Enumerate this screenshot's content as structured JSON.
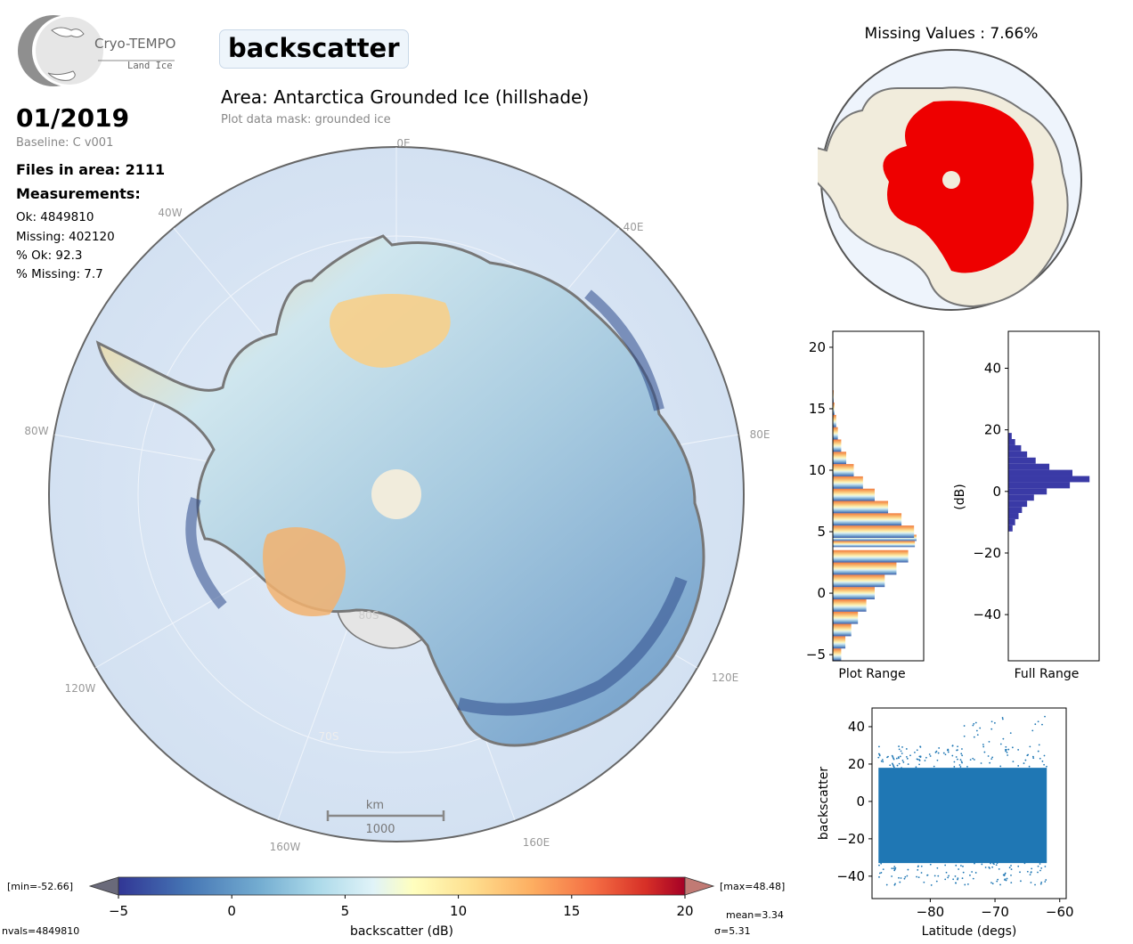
{
  "logo": {
    "name": "Cryo-TEMPO",
    "subtitle": "Land Ice"
  },
  "parameter_title": "backscatter",
  "area_title": "Area: Antarctica Grounded Ice (hillshade)",
  "mask_text": "Plot data mask: grounded ice",
  "date": "01/2019",
  "baseline": "Baseline: C v001",
  "files_in_area": "Files in area: 2111",
  "measurements_heading": "Measurements:",
  "stats": {
    "ok": "Ok: 4849810",
    "missing": "Missing: 402120",
    "pct_ok": "% Ok: 92.3",
    "pct_missing": "% Missing: 7.7"
  },
  "map": {
    "lon_labels": [
      "0E",
      "40E",
      "80E",
      "120E",
      "160E",
      "160W",
      "120W",
      "80W",
      "40W"
    ],
    "lat_labels": [
      "80S",
      "70S"
    ],
    "scalebar_unit": "km",
    "scalebar_value": "1000"
  },
  "missing_map_title": "Missing Values : 7.66%",
  "colorbar": {
    "label": "backscatter (dB)",
    "min_label": "[min=-52.66]",
    "max_label": "[max=48.48]",
    "nvals": "nvals=4849810",
    "mean": "mean=3.34",
    "sigma": "σ=5.31",
    "ticks": [
      "−5",
      "0",
      "5",
      "10",
      "15",
      "20"
    ]
  },
  "chart_data": [
    {
      "type": "bar",
      "orientation": "horizontal",
      "xlabel": "Plot Range",
      "ylabel": "",
      "ylim": [
        -5.5,
        21.3
      ],
      "yticks": [
        "−5",
        "0",
        "5",
        "10",
        "15",
        "20"
      ],
      "bin_centers": [
        -5,
        -4,
        -3,
        -2,
        -1,
        0,
        1,
        2,
        3,
        4,
        4.5,
        5,
        6,
        7,
        8,
        9,
        10,
        11,
        12,
        13,
        14,
        15,
        16
      ],
      "relative_counts": [
        0.1,
        0.15,
        0.22,
        0.3,
        0.4,
        0.5,
        0.62,
        0.76,
        0.9,
        0.98,
        1.0,
        0.97,
        0.82,
        0.66,
        0.5,
        0.36,
        0.25,
        0.16,
        0.1,
        0.06,
        0.04,
        0.02,
        0.01
      ]
    },
    {
      "type": "bar",
      "orientation": "horizontal",
      "xlabel": "Full Range",
      "ylabel": "(dB)",
      "ylim": [
        -55,
        52
      ],
      "yticks": [
        "−40",
        "−20",
        "0",
        "20",
        "40"
      ],
      "bin_centers": [
        -12,
        -10,
        -8,
        -6,
        -4,
        -2,
        0,
        2,
        4,
        6,
        8,
        10,
        12,
        14,
        16,
        18
      ],
      "relative_counts": [
        0.05,
        0.08,
        0.12,
        0.16,
        0.22,
        0.3,
        0.45,
        0.72,
        0.95,
        0.75,
        0.48,
        0.32,
        0.22,
        0.15,
        0.08,
        0.04
      ]
    },
    {
      "type": "scatter",
      "xlabel": "Latitude (degs)",
      "ylabel": "backscatter",
      "xlim": [
        -89,
        -59
      ],
      "ylim": [
        -52,
        50
      ],
      "xticks": [
        "−80",
        "−70",
        "−60"
      ],
      "yticks": [
        "−40",
        "−20",
        "0",
        "20",
        "40"
      ],
      "color": "#1f77b4"
    }
  ]
}
